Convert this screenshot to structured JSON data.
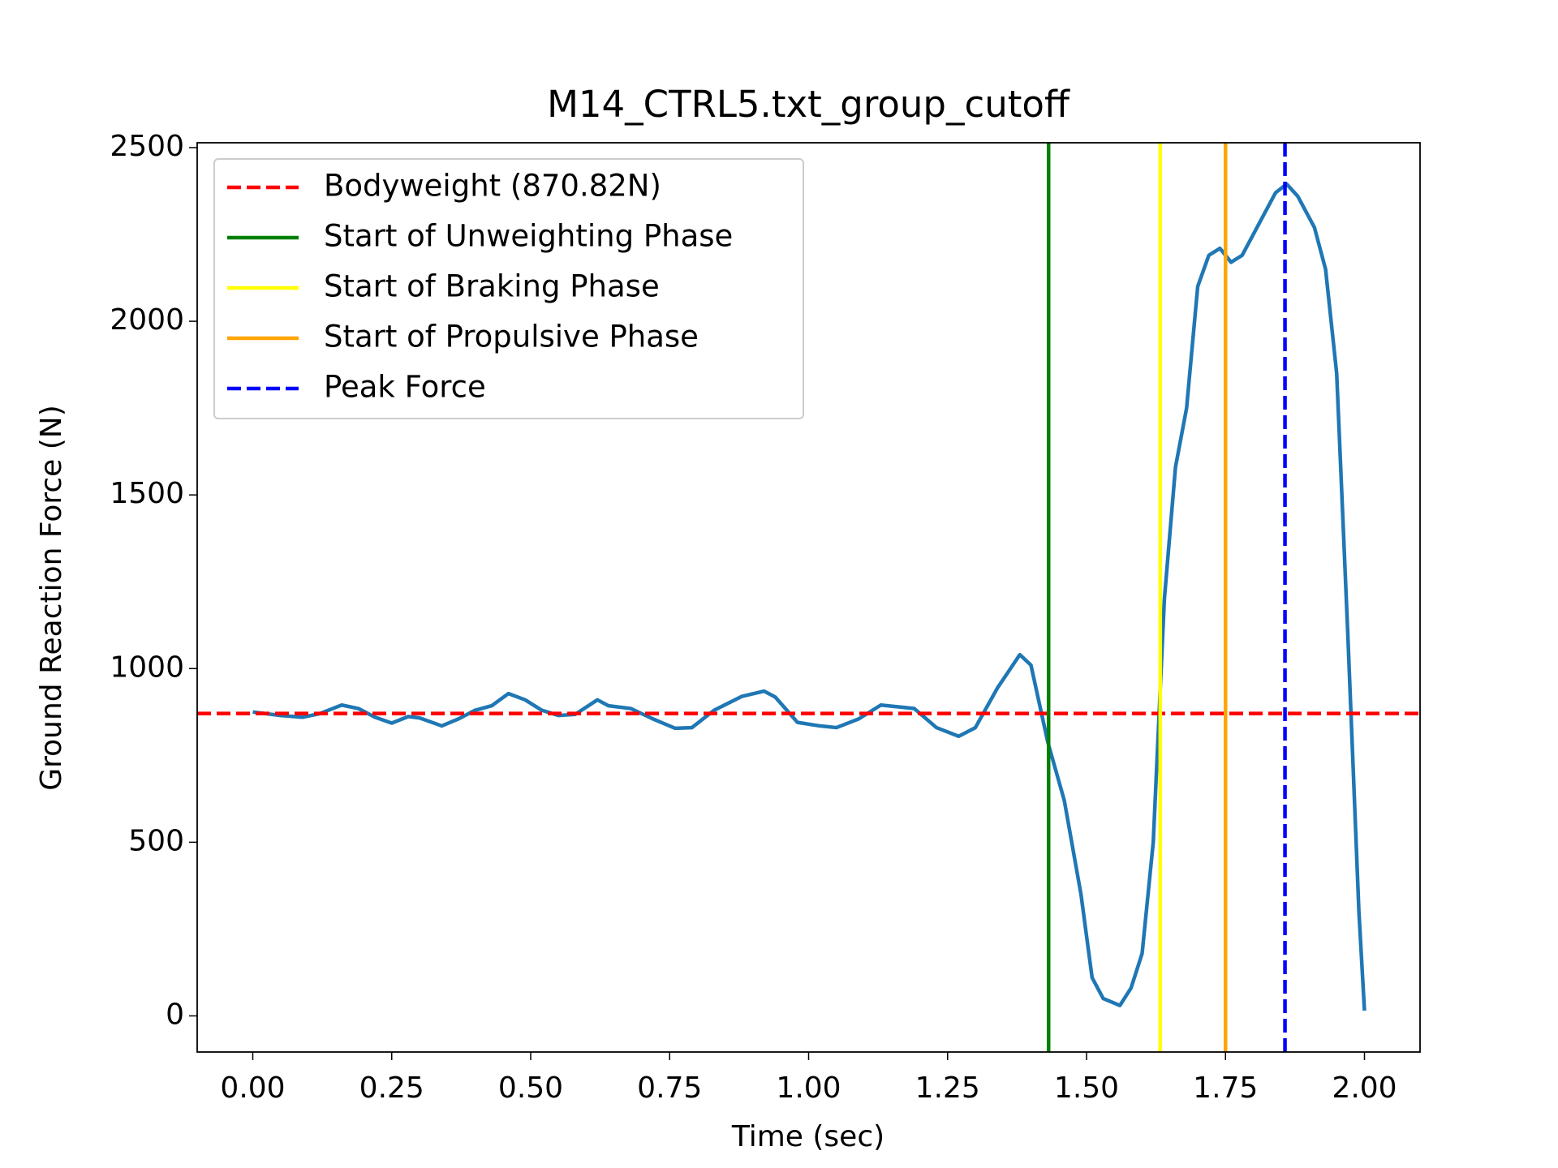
{
  "chart_data": {
    "type": "line",
    "title": "M14_CTRL5.txt_group_cutoff",
    "x_label": "Time (sec)",
    "y_label": "Ground Reaction Force (N)",
    "xlim": [
      -0.1,
      2.1
    ],
    "ylim": [
      -104,
      2514
    ],
    "xticks": [
      {
        "value": 0,
        "label": "0.00"
      },
      {
        "value": 0.25,
        "label": "0.25"
      },
      {
        "value": 0.5,
        "label": "0.50"
      },
      {
        "value": 0.75,
        "label": "0.75"
      },
      {
        "value": 1,
        "label": "1.00"
      },
      {
        "value": 1.25,
        "label": "1.25"
      },
      {
        "value": 1.5,
        "label": "1.50"
      },
      {
        "value": 1.75,
        "label": "1.75"
      },
      {
        "value": 2,
        "label": "2.00"
      }
    ],
    "yticks": [
      0,
      500,
      1000,
      1500,
      2000,
      2500
    ],
    "grid": false,
    "legend": "upper left",
    "line": {
      "color": "#1f77b4",
      "x": [
        0,
        0.05,
        0.09,
        0.12,
        0.16,
        0.19,
        0.22,
        0.25,
        0.28,
        0.3,
        0.34,
        0.37,
        0.4,
        0.43,
        0.46,
        0.49,
        0.52,
        0.55,
        0.58,
        0.62,
        0.64,
        0.68,
        0.72,
        0.76,
        0.79,
        0.83,
        0.88,
        0.92,
        0.94,
        0.98,
        1.02,
        1.05,
        1.09,
        1.13,
        1.16,
        1.19,
        1.23,
        1.27,
        1.3,
        1.34,
        1.38,
        1.4,
        1.43,
        1.46,
        1.49,
        1.51,
        1.53,
        1.56,
        1.58,
        1.6,
        1.62,
        1.64,
        1.66,
        1.68,
        1.7,
        1.72,
        1.74,
        1.76,
        1.78,
        1.81,
        1.84,
        1.86,
        1.88,
        1.91,
        1.93,
        1.95,
        1.97,
        1.99,
        2.0
      ],
      "values": [
        875,
        865,
        860,
        870,
        895,
        885,
        860,
        843,
        862,
        858,
        835,
        855,
        880,
        893,
        928,
        910,
        880,
        865,
        868,
        910,
        893,
        885,
        855,
        828,
        830,
        880,
        920,
        935,
        918,
        845,
        835,
        830,
        855,
        895,
        890,
        885,
        830,
        805,
        830,
        945,
        1040,
        1010,
        790,
        620,
        350,
        110,
        50,
        30,
        80,
        180,
        500,
        1200,
        1580,
        1750,
        2100,
        2190,
        2210,
        2170,
        2190,
        2280,
        2370,
        2395,
        2360,
        2270,
        2150,
        1850,
        1100,
        300,
        15
      ]
    },
    "reference_lines": [
      {
        "name": "Bodyweight (870.82N)",
        "color": "#ff0000",
        "dashed": true,
        "y": 870.82
      },
      {
        "name": "Start of Unweighting Phase",
        "color": "#008000",
        "dashed": false,
        "x": 1.4317
      },
      {
        "name": "Start of Braking Phase",
        "color": "#ffff00",
        "dashed": false,
        "x": 1.6326
      },
      {
        "name": "Start of Propulsive Phase",
        "color": "#ffa500",
        "dashed": false,
        "x": 1.75
      },
      {
        "name": "Peak Force",
        "color": "#0000ff",
        "dashed": true,
        "x": 1.857
      }
    ]
  }
}
